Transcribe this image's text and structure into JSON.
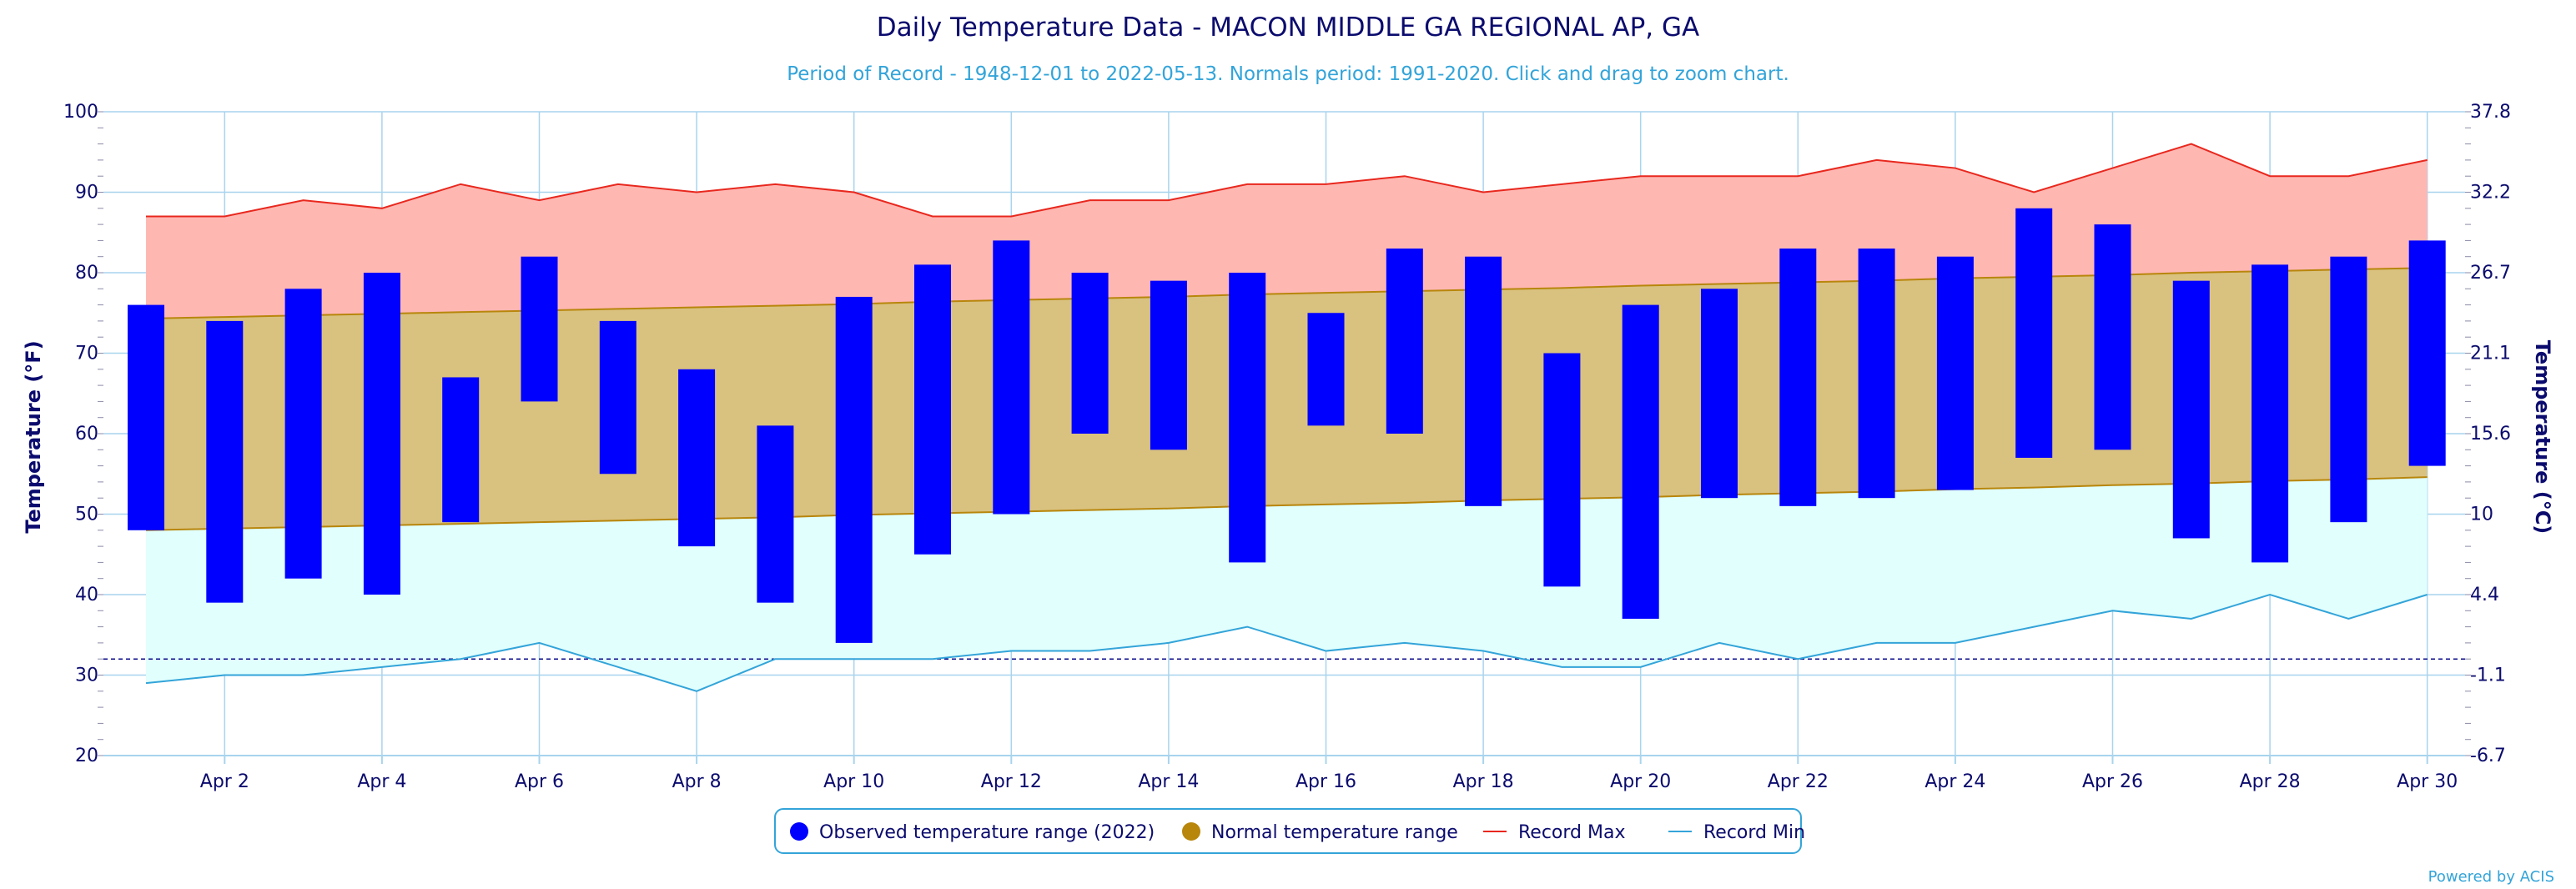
{
  "chart_data": {
    "type": "bar",
    "title": "Daily Temperature Data - MACON MIDDLE GA REGIONAL AP, GA",
    "subtitle": "Period of Record - 1948-12-01 to 2022-05-13. Normals period: 1991-2020. Click and drag to zoom chart.",
    "ylabel_left": "Temperature (°F)",
    "ylabel_right": "Temperature (°C)",
    "ylim": [
      20,
      100
    ],
    "y_ticks_left": [
      "20",
      "30",
      "40",
      "50",
      "60",
      "70",
      "80",
      "90",
      "100"
    ],
    "y_ticks_right": [
      "-6.7",
      "-1.1",
      "4.4",
      "10",
      "15.6",
      "21.1",
      "26.7",
      "32.2",
      "37.8"
    ],
    "x_tick_labels": [
      "Apr 2",
      "Apr 4",
      "Apr 6",
      "Apr 8",
      "Apr 10",
      "Apr 12",
      "Apr 14",
      "Apr 16",
      "Apr 18",
      "Apr 20",
      "Apr 22",
      "Apr 24",
      "Apr 26",
      "Apr 28",
      "Apr 30"
    ],
    "days": [
      1,
      2,
      3,
      4,
      5,
      6,
      7,
      8,
      9,
      10,
      11,
      12,
      13,
      14,
      15,
      16,
      17,
      18,
      19,
      20,
      21,
      22,
      23,
      24,
      25,
      26,
      27,
      28,
      29,
      30
    ],
    "freezing_line": 32,
    "series": [
      {
        "name": "Observed temperature range (2022)",
        "color": "#0000ff",
        "high": [
          76,
          74,
          78,
          80,
          67,
          82,
          74,
          68,
          61,
          77,
          81,
          84,
          80,
          79,
          80,
          75,
          83,
          82,
          70,
          76,
          78,
          83,
          83,
          82,
          88,
          86,
          79,
          81,
          82,
          84
        ],
        "low": [
          48,
          39,
          42,
          40,
          49,
          64,
          55,
          46,
          39,
          34,
          45,
          50,
          60,
          58,
          44,
          61,
          60,
          51,
          41,
          37,
          52,
          51,
          52,
          53,
          57,
          58,
          47,
          44,
          49,
          56
        ]
      },
      {
        "name": "Normal temperature range",
        "color": "#b8860b",
        "high": [
          74.3,
          74.5,
          74.7,
          74.9,
          75.1,
          75.3,
          75.5,
          75.7,
          75.9,
          76.1,
          76.4,
          76.6,
          76.8,
          77.0,
          77.3,
          77.5,
          77.7,
          77.9,
          78.1,
          78.4,
          78.6,
          78.8,
          79.0,
          79.3,
          79.5,
          79.7,
          80.0,
          80.2,
          80.4,
          80.6
        ],
        "low": [
          48.0,
          48.2,
          48.4,
          48.6,
          48.8,
          49.0,
          49.2,
          49.4,
          49.6,
          49.9,
          50.1,
          50.3,
          50.5,
          50.7,
          51.0,
          51.2,
          51.4,
          51.7,
          51.9,
          52.1,
          52.4,
          52.6,
          52.8,
          53.1,
          53.3,
          53.6,
          53.8,
          54.1,
          54.3,
          54.6
        ]
      },
      {
        "name": "Record Max",
        "color": "#e8281e",
        "values": [
          87,
          87,
          89,
          88,
          91,
          89,
          91,
          90,
          91,
          90,
          87,
          87,
          89,
          89,
          91,
          91,
          92,
          90,
          91,
          92,
          92,
          92,
          94,
          93,
          90,
          93,
          96,
          92,
          92,
          94
        ]
      },
      {
        "name": "Record Min",
        "color": "#33a4d9",
        "values": [
          29,
          30,
          30,
          31,
          32,
          34,
          31,
          28,
          32,
          32,
          32,
          33,
          33,
          34,
          36,
          33,
          34,
          33,
          31,
          31,
          34,
          32,
          34,
          34,
          36,
          38,
          37,
          40,
          37,
          40
        ]
      }
    ],
    "legend": {
      "position": "bottom-center",
      "items": [
        {
          "label": "Observed temperature range (2022)",
          "marker": "dot",
          "color": "#0000ff"
        },
        {
          "label": "Normal temperature range",
          "marker": "dot",
          "color": "#b8860b"
        },
        {
          "label": "Record Max",
          "marker": "line",
          "color": "#e8281e"
        },
        {
          "label": "Record Min",
          "marker": "line",
          "color": "#33a4d9"
        }
      ]
    },
    "credit": "Powered by ACIS",
    "colors": {
      "record_max_fill": "#ffb7b2",
      "normal_fill": "#d9c17f",
      "record_min_fill": "#e0fffd",
      "grid": "#a8d4ee",
      "text": "#0b0b6e",
      "freezing_line": "#0b0b8a"
    }
  }
}
